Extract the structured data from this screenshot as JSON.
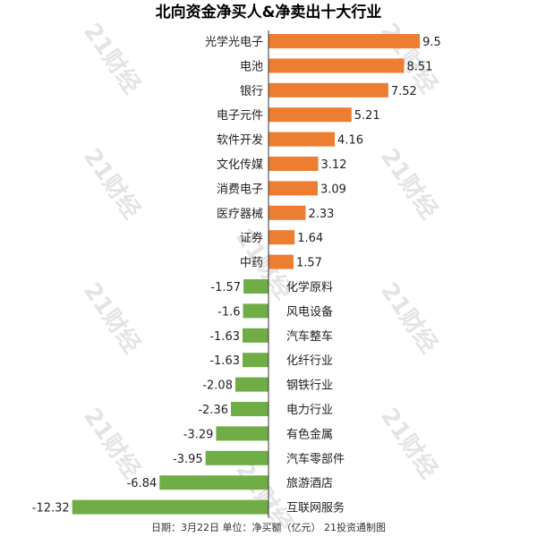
{
  "chart_data": {
    "type": "bar",
    "orientation": "horizontal",
    "title": "北向资金净买人&净卖出十大行业",
    "categories": [
      "光学光电子",
      "电池",
      "银行",
      "电子元件",
      "软件开发",
      "文化传媒",
      "消费电子",
      "医疗器械",
      "证券",
      "中药",
      "化学原料",
      "风电设备",
      "汽车整车",
      "化纤行业",
      "钢铁行业",
      "电力行业",
      "有色金属",
      "汽车零部件",
      "旅游酒店",
      "互联网服务"
    ],
    "values": [
      9.5,
      8.51,
      7.52,
      5.21,
      4.16,
      3.12,
      3.09,
      2.33,
      1.64,
      1.57,
      -1.57,
      -1.6,
      -1.63,
      -1.63,
      -2.08,
      -2.36,
      -3.29,
      -3.95,
      -6.84,
      -12.32
    ],
    "value_labels": [
      "9.5",
      "8.51",
      "7.52",
      "5.21",
      "4.16",
      "3.12",
      "3.09",
      "2.33",
      "1.64",
      "1.57",
      "-1.57",
      "-1.6",
      "-1.63",
      "-1.63",
      "-2.08",
      "-2.36",
      "-3.29",
      "-3.95",
      "-6.84",
      "-12.32"
    ],
    "xlabel": "",
    "ylabel": "",
    "xlim": [
      -12.32,
      9.5
    ],
    "grid": false,
    "legend": "none",
    "colors": {
      "positive": "#ED7D31",
      "negative": "#70AD47"
    }
  },
  "footer": {
    "text": "日期：3月22日 单位：净买额（亿元） 21投资通制图"
  },
  "watermark": {
    "text": "21财经"
  }
}
